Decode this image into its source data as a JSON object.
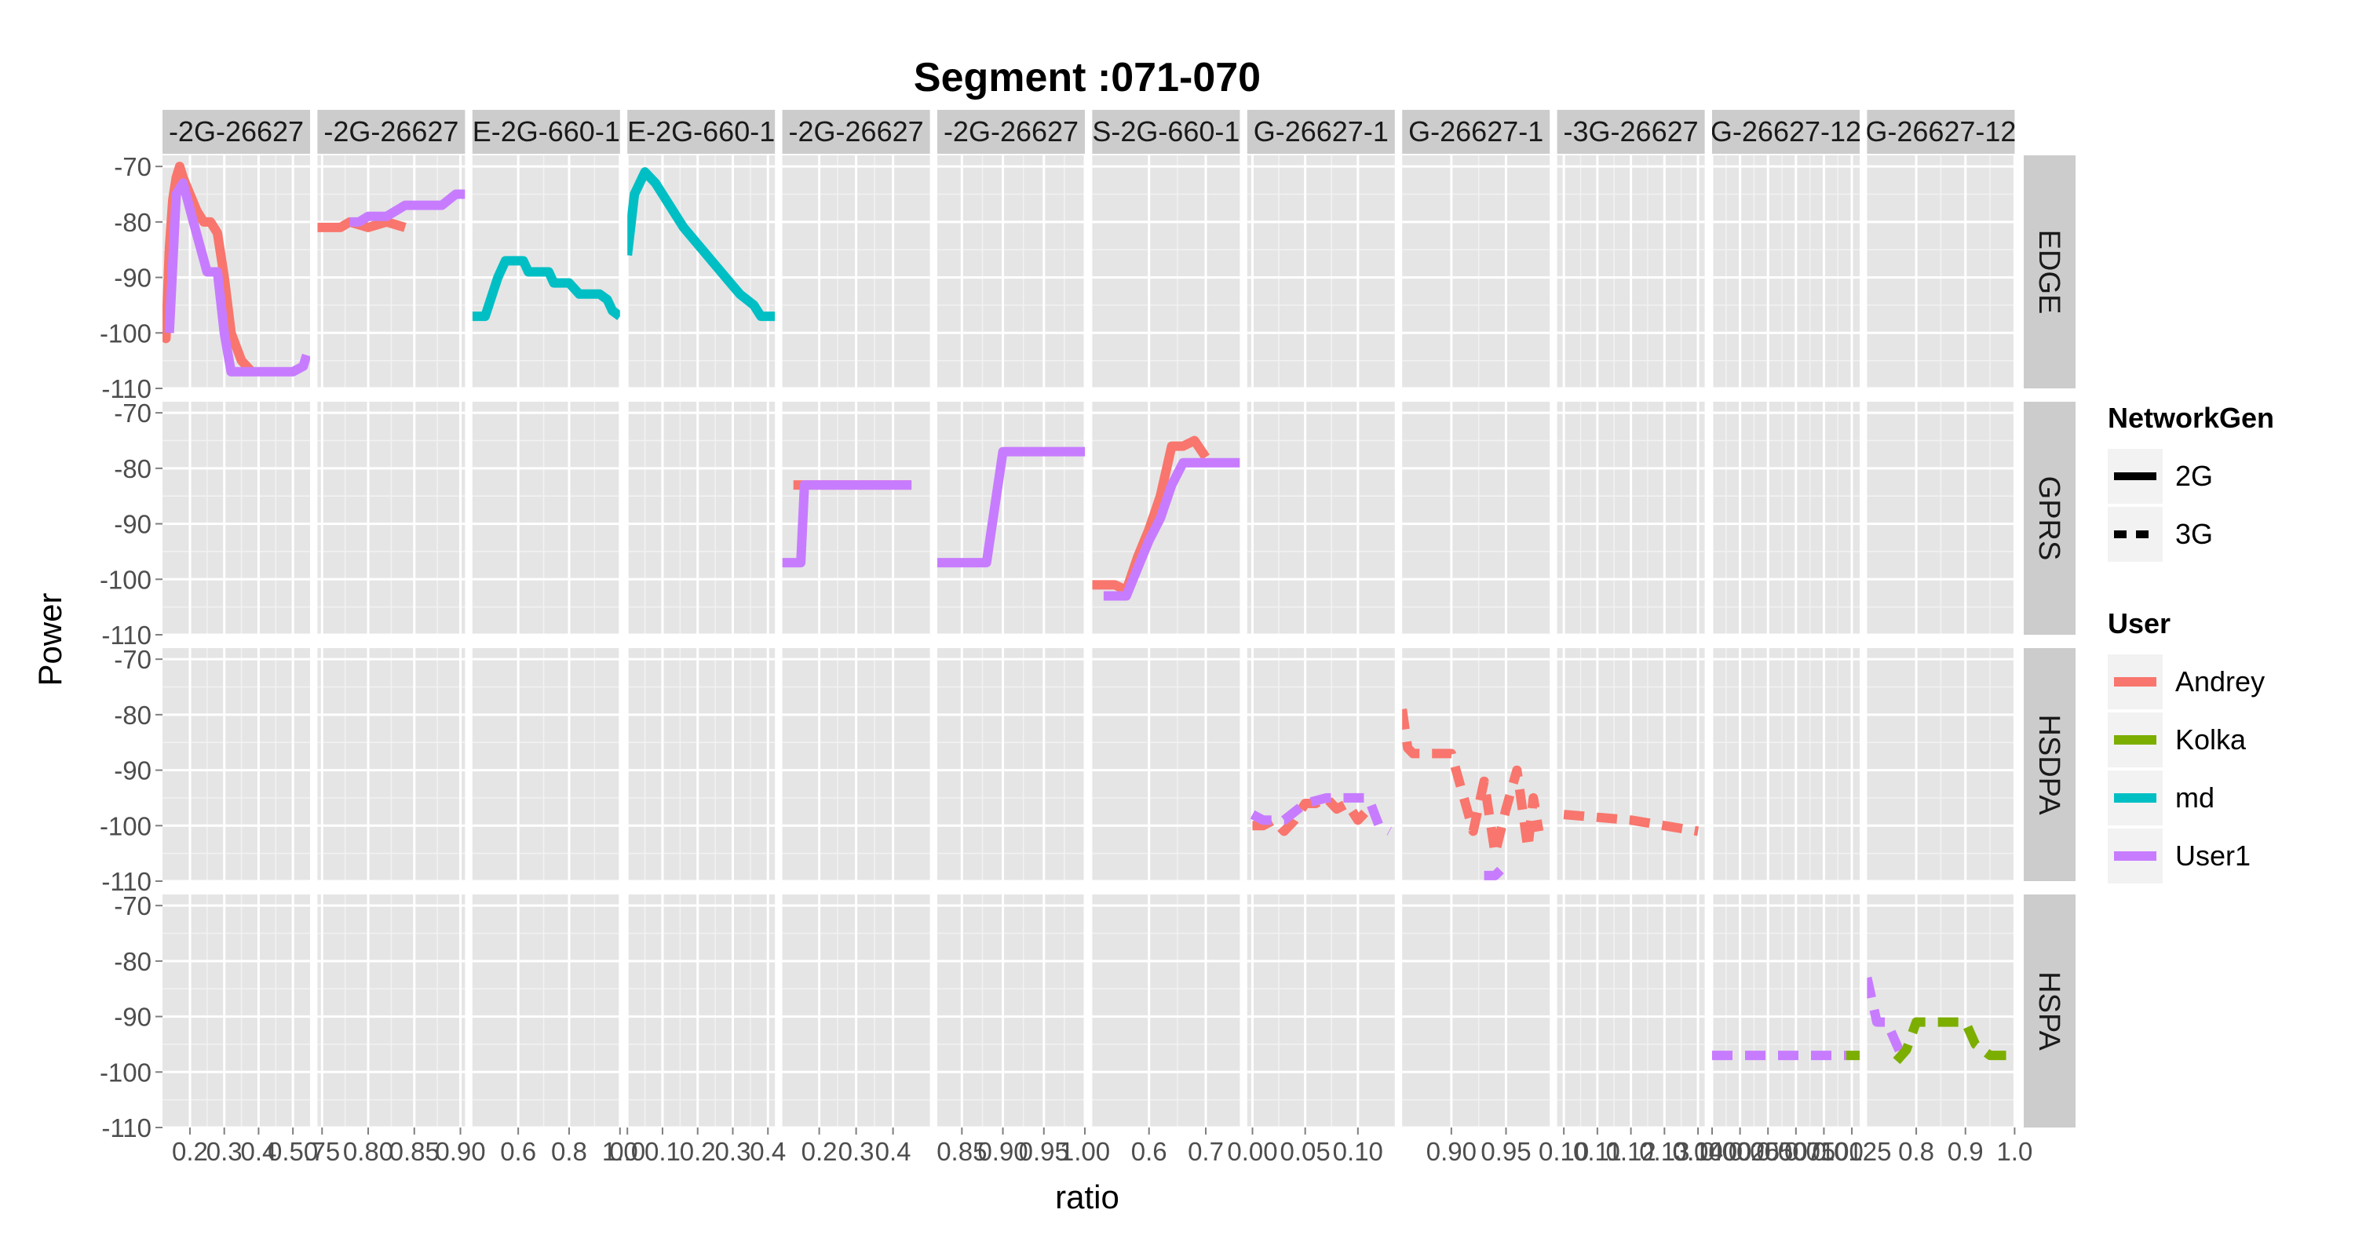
{
  "chart_data": {
    "type": "line",
    "title": "Segment :071-070",
    "xlabel": "ratio",
    "ylabel": "Power",
    "ylim": [
      -110,
      -68
    ],
    "y_ticks": [
      -70,
      -80,
      -90,
      -100,
      -110
    ],
    "grid": true,
    "legend_position": "right",
    "column_strips": [
      "-2G-26627",
      "-2G-26627",
      "E-2G-660-1",
      "E-2G-660-1",
      "-2G-26627",
      "-2G-26627",
      "S-2G-660-1",
      "G-26627-1",
      "G-26627-1",
      "-3G-26627",
      "G-26627-12",
      "G-26627-12"
    ],
    "row_strips": [
      "EDGE",
      "GPRS",
      "HSDPA",
      "HSPA"
    ],
    "columns": [
      {
        "strip": "-2G-26627",
        "xlim": [
          0.12,
          0.55
        ],
        "ticks": [
          0.2,
          0.3,
          0.4,
          0.5
        ],
        "tick_labels": [
          "0.2",
          "0.3",
          "0.4",
          "0.50"
        ]
      },
      {
        "strip": "-2G-26627",
        "xlim": [
          0.745,
          0.905
        ],
        "ticks": [
          0.75,
          0.8,
          0.85,
          0.9
        ],
        "tick_labels": [
          ".75",
          "0.80",
          "0.85",
          "0.90"
        ]
      },
      {
        "strip": "E-2G-660-1",
        "xlim": [
          0.42,
          1.0
        ],
        "ticks": [
          0.6,
          0.8,
          1.0
        ],
        "tick_labels": [
          "0.6",
          "0.8",
          "1.0"
        ]
      },
      {
        "strip": "E-2G-660-1",
        "xlim": [
          0.0,
          0.42
        ],
        "ticks": [
          0.0,
          0.1,
          0.2,
          0.3,
          0.4
        ],
        "tick_labels": [
          "0.0",
          "0.1",
          "0.2",
          "0.3",
          "0.4"
        ]
      },
      {
        "strip": "-2G-26627",
        "xlim": [
          0.1,
          0.5
        ],
        "ticks": [
          0.2,
          0.3,
          0.4
        ],
        "tick_labels": [
          "0.2",
          "0.3",
          "0.4"
        ]
      },
      {
        "strip": "-2G-26627",
        "xlim": [
          0.82,
          1.0
        ],
        "ticks": [
          0.85,
          0.9,
          0.95,
          1.0
        ],
        "tick_labels": [
          "0.85",
          "0.90",
          "0.95",
          "1.00"
        ]
      },
      {
        "strip": "S-2G-660-1",
        "xlim": [
          0.5,
          0.76
        ],
        "ticks": [
          0.6,
          0.7
        ],
        "tick_labels": [
          "0.6",
          "0.7"
        ]
      },
      {
        "strip": "G-26627-1",
        "xlim": [
          -0.005,
          0.135
        ],
        "ticks": [
          0.0,
          0.05,
          0.1
        ],
        "tick_labels": [
          "0.00",
          "0.05",
          "0.10"
        ]
      },
      {
        "strip": "G-26627-1",
        "xlim": [
          0.855,
          0.99
        ],
        "ticks": [
          0.9,
          0.95
        ],
        "tick_labels": [
          "0.90",
          "0.95"
        ]
      },
      {
        "strip": "-3G-26627",
        "xlim": [
          0.098,
          0.142
        ],
        "ticks": [
          0.1,
          0.11,
          0.12,
          0.13,
          0.14
        ],
        "tick_labels": [
          "0.10",
          "0.11",
          "0.12",
          "0.13",
          "0.14"
        ]
      },
      {
        "strip": "G-26627-12",
        "xlim": [
          0.0,
          0.0132
        ],
        "ticks": [
          0.0,
          0.0025,
          0.005,
          0.0075,
          0.01,
          0.0125
        ],
        "tick_labels": [
          "0.0000",
          "0.0025",
          "0.0050",
          "0.0075",
          "0.0100",
          "0.0125"
        ]
      },
      {
        "strip": "G-26627-12",
        "xlim": [
          0.7,
          1.0
        ],
        "ticks": [
          0.8,
          0.9,
          1.0
        ],
        "tick_labels": [
          "0.8",
          "0.9",
          "1.0"
        ]
      }
    ],
    "legend": {
      "network_gen": {
        "title": "NetworkGen",
        "items": [
          {
            "label": "2G",
            "dash": "solid"
          },
          {
            "label": "3G",
            "dash": "dashed"
          }
        ]
      },
      "user": {
        "title": "User",
        "items": [
          {
            "label": "Andrey",
            "color": "#F8766D"
          },
          {
            "label": "Kolka",
            "color": "#7CAE00"
          },
          {
            "label": "md",
            "color": "#00BFC4"
          },
          {
            "label": "User1",
            "color": "#C77CFF"
          }
        ]
      }
    },
    "series": [
      {
        "row": 0,
        "col": 0,
        "user": "Andrey",
        "gen": "2G",
        "x": [
          0.12,
          0.13,
          0.14,
          0.15,
          0.16,
          0.17,
          0.18,
          0.2,
          0.22,
          0.24,
          0.26,
          0.28,
          0.3,
          0.32,
          0.35,
          0.38
        ],
        "y": [
          -98,
          -101,
          -85,
          -76,
          -72,
          -70,
          -72,
          -75,
          -78,
          -80,
          -80,
          -82,
          -90,
          -100,
          -105,
          -107
        ]
      },
      {
        "row": 0,
        "col": 0,
        "user": "User1",
        "gen": "2G",
        "x": [
          0.14,
          0.16,
          0.18,
          0.21,
          0.25,
          0.28,
          0.3,
          0.32,
          0.35,
          0.4,
          0.5,
          0.53,
          0.54
        ],
        "y": [
          -100,
          -75,
          -73,
          -80,
          -89,
          -89,
          -100,
          -107,
          -107,
          -107,
          -107,
          -106,
          -104
        ]
      },
      {
        "row": 0,
        "col": 1,
        "user": "Andrey",
        "gen": "2G",
        "x": [
          0.745,
          0.77,
          0.78,
          0.8,
          0.82,
          0.84
        ],
        "y": [
          -81,
          -81,
          -80,
          -81,
          -80,
          -81
        ]
      },
      {
        "row": 0,
        "col": 1,
        "user": "User1",
        "gen": "2G",
        "x": [
          0.78,
          0.79,
          0.8,
          0.82,
          0.84,
          0.86,
          0.88,
          0.895,
          0.905
        ],
        "y": [
          -80,
          -80,
          -79,
          -79,
          -77,
          -77,
          -77,
          -75,
          -75
        ]
      },
      {
        "row": 0,
        "col": 2,
        "user": "md",
        "gen": "2G",
        "x": [
          0.42,
          0.47,
          0.52,
          0.55,
          0.62,
          0.64,
          0.72,
          0.74,
          0.8,
          0.84,
          0.86,
          0.92,
          0.95,
          0.97,
          1.0
        ],
        "y": [
          -97,
          -97,
          -90,
          -87,
          -87,
          -89,
          -89,
          -91,
          -91,
          -93,
          -93,
          -93,
          -94,
          -96,
          -97
        ]
      },
      {
        "row": 0,
        "col": 3,
        "user": "md",
        "gen": "2G",
        "x": [
          0.0,
          0.02,
          0.05,
          0.08,
          0.12,
          0.16,
          0.2,
          0.24,
          0.28,
          0.32,
          0.36,
          0.38,
          0.42
        ],
        "y": [
          -86,
          -75,
          -71,
          -73,
          -77,
          -81,
          -84,
          -87,
          -90,
          -93,
          -95,
          -97,
          -97
        ]
      },
      {
        "row": 1,
        "col": 4,
        "user": "Andrey",
        "gen": "2G",
        "x": [
          0.13,
          0.45
        ],
        "y": [
          -83,
          -83
        ]
      },
      {
        "row": 1,
        "col": 4,
        "user": "User1",
        "gen": "2G",
        "x": [
          0.1,
          0.15,
          0.16,
          0.45
        ],
        "y": [
          -97,
          -97,
          -83,
          -83
        ]
      },
      {
        "row": 1,
        "col": 5,
        "user": "User1",
        "gen": "2G",
        "x": [
          0.82,
          0.88,
          0.9,
          0.93,
          1.0
        ],
        "y": [
          -97,
          -97,
          -77,
          -77,
          -77
        ]
      },
      {
        "row": 1,
        "col": 6,
        "user": "Andrey",
        "gen": "2G",
        "x": [
          0.5,
          0.54,
          0.56,
          0.58,
          0.6,
          0.62,
          0.64,
          0.66,
          0.68,
          0.7
        ],
        "y": [
          -101,
          -101,
          -102,
          -96,
          -91,
          -85,
          -76,
          -76,
          -75,
          -78
        ]
      },
      {
        "row": 1,
        "col": 6,
        "user": "User1",
        "gen": "2G",
        "x": [
          0.52,
          0.54,
          0.56,
          0.58,
          0.6,
          0.62,
          0.64,
          0.66,
          0.7,
          0.76
        ],
        "y": [
          -103,
          -103,
          -103,
          -98,
          -93,
          -89,
          -83,
          -79,
          -79,
          -79
        ]
      },
      {
        "row": 2,
        "col": 7,
        "user": "Andrey",
        "gen": "3G",
        "x": [
          0.0,
          0.01,
          0.02,
          0.03,
          0.04,
          0.05,
          0.06,
          0.07,
          0.08,
          0.09,
          0.1,
          0.11
        ],
        "y": [
          -100,
          -100,
          -99,
          -101,
          -99,
          -96,
          -96,
          -95,
          -97,
          -96,
          -99,
          -97
        ]
      },
      {
        "row": 2,
        "col": 7,
        "user": "User1",
        "gen": "3G",
        "x": [
          0.0,
          0.01,
          0.03,
          0.05,
          0.07,
          0.09,
          0.11,
          0.12,
          0.13
        ],
        "y": [
          -98,
          -99,
          -99,
          -96,
          -95,
          -95,
          -95,
          -100,
          -101
        ]
      },
      {
        "row": 2,
        "col": 8,
        "user": "Andrey",
        "gen": "3G",
        "x": [
          0.855,
          0.86,
          0.865,
          0.9,
          0.91,
          0.92,
          0.93,
          0.94,
          0.95,
          0.96,
          0.97,
          0.975,
          0.98
        ],
        "y": [
          -79,
          -86,
          -87,
          -87,
          -94,
          -101,
          -92,
          -105,
          -97,
          -90,
          -104,
          -95,
          -101
        ]
      },
      {
        "row": 2,
        "col": 8,
        "user": "User1",
        "gen": "3G",
        "x": [
          0.93,
          0.94,
          0.945
        ],
        "y": [
          -109,
          -109,
          -108
        ]
      },
      {
        "row": 2,
        "col": 9,
        "user": "Andrey",
        "gen": "3G",
        "x": [
          0.1,
          0.12,
          0.14
        ],
        "y": [
          -98,
          -99,
          -101
        ]
      },
      {
        "row": 3,
        "col": 10,
        "user": "User1",
        "gen": "3G",
        "x": [
          0.0,
          0.012
        ],
        "y": [
          -97,
          -97
        ]
      },
      {
        "row": 3,
        "col": 10,
        "user": "Kolka",
        "gen": "3G",
        "x": [
          0.012,
          0.0132
        ],
        "y": [
          -97,
          -97
        ]
      },
      {
        "row": 3,
        "col": 11,
        "user": "User1",
        "gen": "3G",
        "x": [
          0.7,
          0.72,
          0.74,
          0.76,
          0.77,
          0.78
        ],
        "y": [
          -83,
          -91,
          -91,
          -95,
          -97,
          -97
        ]
      },
      {
        "row": 3,
        "col": 11,
        "user": "Kolka",
        "gen": "3G",
        "x": [
          0.76,
          0.78,
          0.8,
          0.82,
          0.9,
          0.92,
          0.95,
          1.0
        ],
        "y": [
          -98,
          -96,
          -91,
          -91,
          -91,
          -95,
          -97,
          -97
        ]
      }
    ]
  }
}
